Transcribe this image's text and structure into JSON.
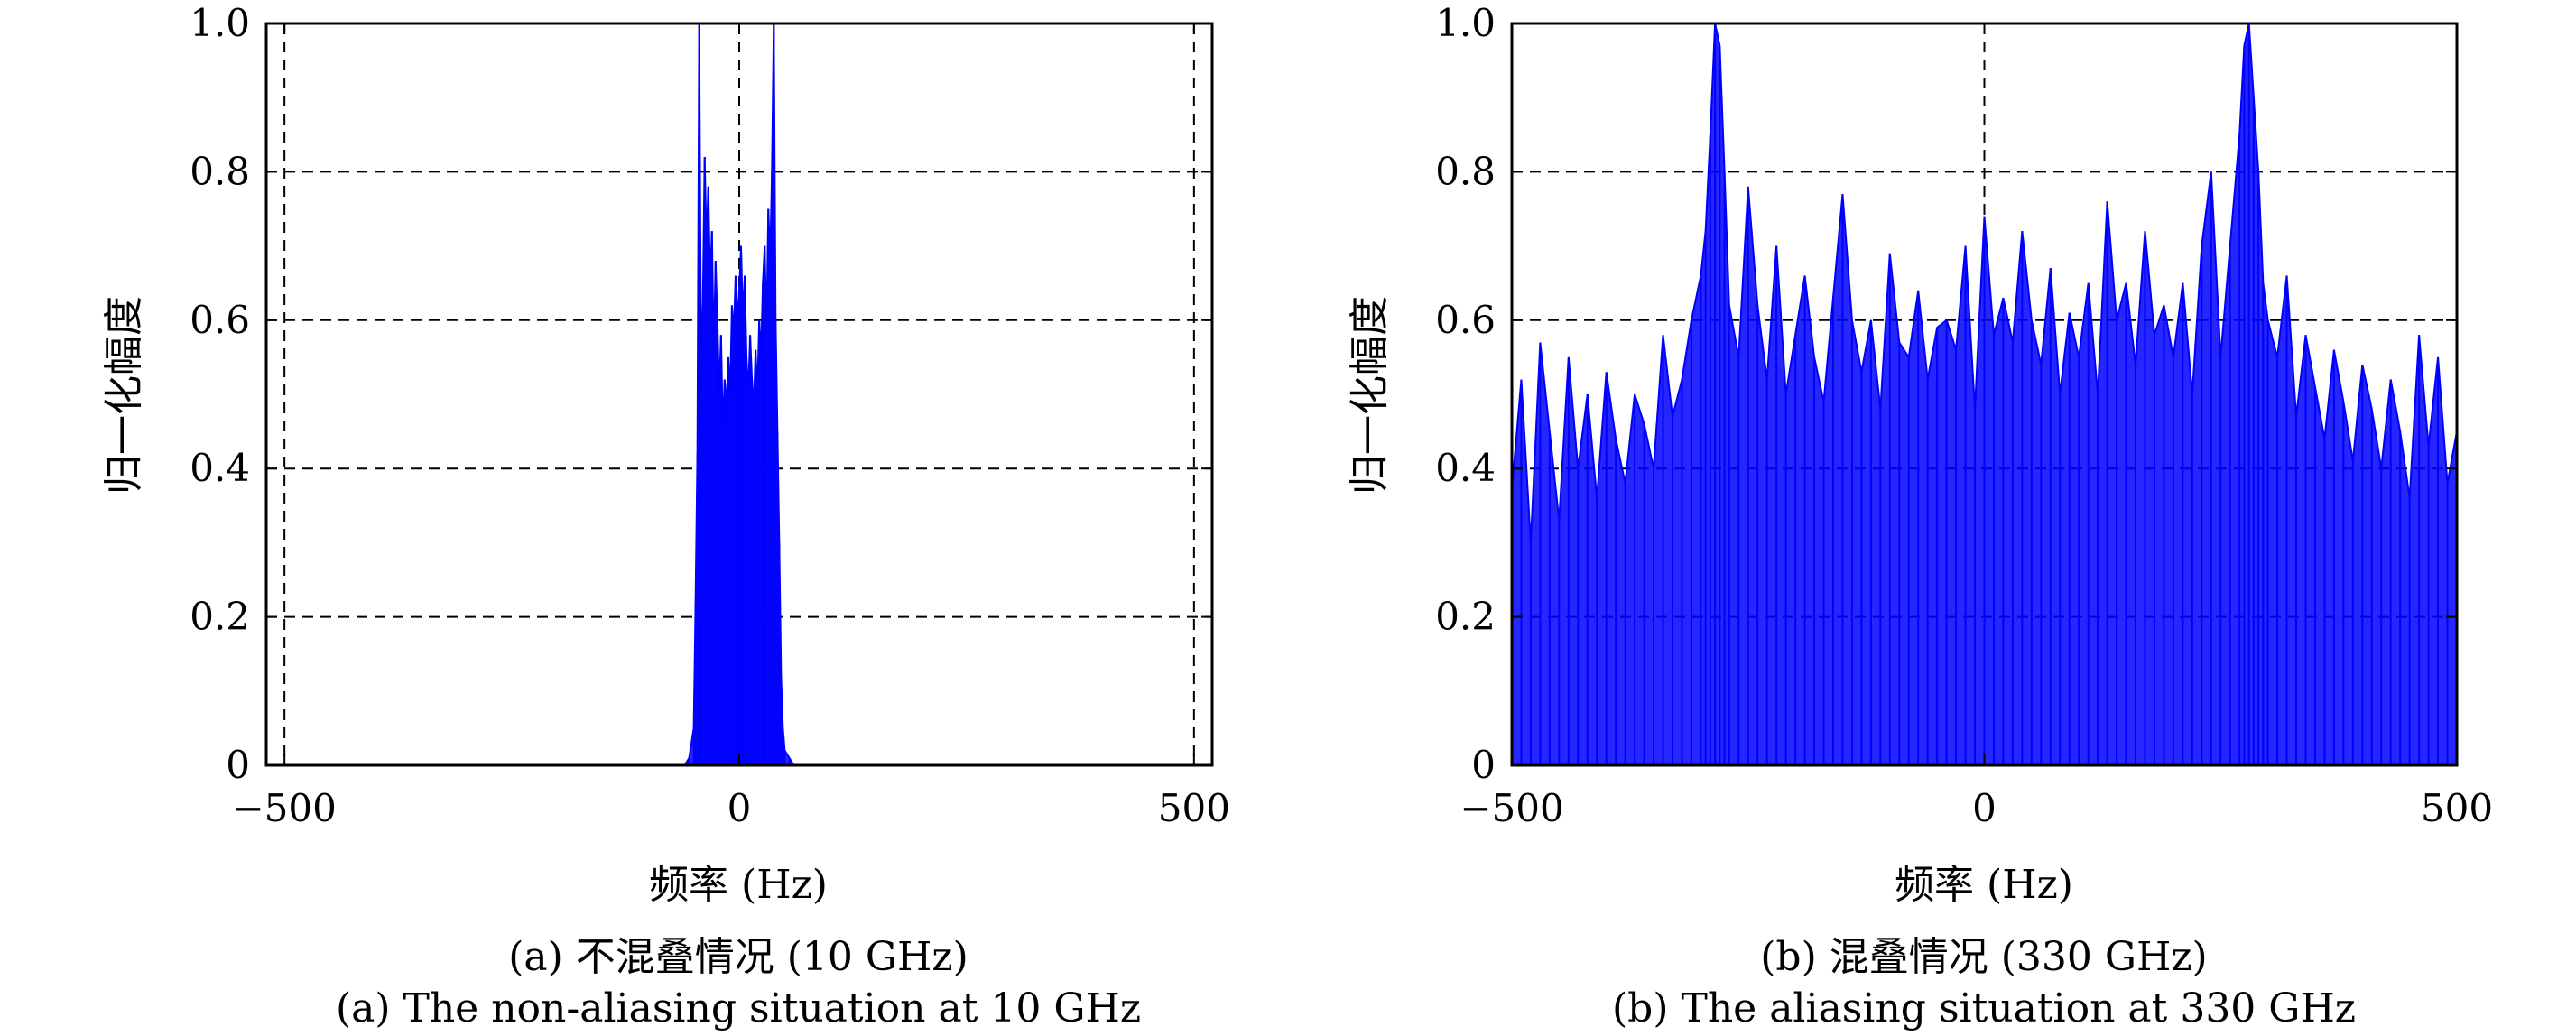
{
  "colors": {
    "signal": "#0000ff",
    "axis": "#000000",
    "grid": "#000000",
    "background": "#ffffff"
  },
  "chart_data": [
    {
      "type": "line",
      "title": "",
      "xlabel": "频率 (Hz)",
      "ylabel": "归一化幅度",
      "xlim": [
        -520,
        520
      ],
      "ylim": [
        0,
        1
      ],
      "xticks": [
        -500,
        0,
        500
      ],
      "xtick_labels": [
        "−500",
        "0",
        "500"
      ],
      "yticks": [
        0,
        0.2,
        0.4,
        0.6,
        0.8,
        1.0
      ],
      "ytick_labels": [
        "0",
        "0.2",
        "0.4",
        "0.6",
        "0.8",
        "1.0"
      ],
      "grid": "dashed",
      "caption_cn": "(a) 不混叠情况 (10 GHz)",
      "caption_en": "(a) The non-aliasing situation at 10 GHz",
      "series": [
        {
          "color": "#0000ff",
          "x": [
            -500,
            -60,
            -55,
            -50,
            -48,
            -46,
            -44,
            -42,
            -40,
            -38,
            -36,
            -34,
            -32,
            -30,
            -28,
            -26,
            -24,
            -22,
            -20,
            -18,
            -16,
            -14,
            -12,
            -10,
            -8,
            -6,
            -4,
            -2,
            0,
            2,
            4,
            6,
            8,
            10,
            12,
            14,
            16,
            18,
            20,
            22,
            24,
            26,
            28,
            30,
            32,
            34,
            36,
            38,
            40,
            42,
            44,
            46,
            48,
            50,
            55,
            60,
            500
          ],
          "y": [
            0,
            0,
            0.01,
            0.05,
            0.22,
            0.42,
            1.0,
            0.55,
            0.62,
            0.82,
            0.7,
            0.78,
            0.65,
            0.72,
            0.55,
            0.68,
            0.6,
            0.5,
            0.58,
            0.45,
            0.52,
            0.48,
            0.55,
            0.5,
            0.62,
            0.58,
            0.66,
            0.6,
            0.64,
            0.7,
            0.6,
            0.66,
            0.55,
            0.5,
            0.58,
            0.52,
            0.48,
            0.56,
            0.5,
            0.6,
            0.55,
            0.65,
            0.7,
            0.58,
            0.75,
            0.68,
            0.8,
            1.0,
            0.6,
            0.45,
            0.3,
            0.12,
            0.05,
            0.02,
            0.01,
            0,
            0
          ]
        }
      ]
    },
    {
      "type": "line",
      "title": "",
      "xlabel": "频率 (Hz)",
      "ylabel": "归一化幅度",
      "xlim": [
        -500,
        500
      ],
      "ylim": [
        0,
        1
      ],
      "xticks": [
        -500,
        0,
        500
      ],
      "xtick_labels": [
        "−500",
        "0",
        "500"
      ],
      "yticks": [
        0,
        0.2,
        0.4,
        0.6,
        0.8,
        1.0
      ],
      "ytick_labels": [
        "0",
        "0.2",
        "0.4",
        "0.6",
        "0.8",
        "1.0"
      ],
      "grid": "dashed",
      "caption_cn": "(b) 混叠情况 (330 GHz)",
      "caption_en": "(b) The aliasing situation at 330 GHz",
      "series": [
        {
          "color": "#0000ff",
          "x": [
            -500,
            -490,
            -480,
            -470,
            -460,
            -450,
            -440,
            -430,
            -420,
            -410,
            -400,
            -390,
            -380,
            -370,
            -360,
            -350,
            -340,
            -330,
            -320,
            -310,
            -300,
            -295,
            -290,
            -285,
            -280,
            -275,
            -270,
            -260,
            -250,
            -240,
            -230,
            -220,
            -210,
            -200,
            -190,
            -180,
            -170,
            -160,
            -150,
            -140,
            -130,
            -120,
            -110,
            -100,
            -90,
            -80,
            -70,
            -60,
            -50,
            -40,
            -30,
            -20,
            -10,
            0,
            10,
            20,
            30,
            40,
            50,
            60,
            70,
            80,
            90,
            100,
            110,
            120,
            130,
            140,
            150,
            160,
            170,
            180,
            190,
            200,
            210,
            220,
            230,
            240,
            250,
            260,
            270,
            275,
            280,
            285,
            290,
            295,
            300,
            310,
            320,
            330,
            340,
            350,
            360,
            370,
            380,
            390,
            400,
            410,
            420,
            430,
            440,
            450,
            460,
            470,
            480,
            490,
            500
          ],
          "y": [
            0.37,
            0.52,
            0.3,
            0.57,
            0.45,
            0.33,
            0.55,
            0.4,
            0.5,
            0.36,
            0.53,
            0.44,
            0.38,
            0.5,
            0.46,
            0.4,
            0.58,
            0.47,
            0.52,
            0.6,
            0.66,
            0.72,
            0.85,
            1.0,
            0.97,
            0.8,
            0.62,
            0.55,
            0.78,
            0.62,
            0.52,
            0.7,
            0.5,
            0.58,
            0.66,
            0.55,
            0.49,
            0.63,
            0.77,
            0.6,
            0.53,
            0.6,
            0.48,
            0.69,
            0.57,
            0.55,
            0.64,
            0.52,
            0.59,
            0.6,
            0.56,
            0.7,
            0.48,
            0.74,
            0.58,
            0.63,
            0.57,
            0.72,
            0.6,
            0.54,
            0.67,
            0.5,
            0.61,
            0.55,
            0.65,
            0.5,
            0.76,
            0.6,
            0.65,
            0.54,
            0.72,
            0.58,
            0.62,
            0.55,
            0.65,
            0.5,
            0.7,
            0.8,
            0.55,
            0.7,
            0.85,
            0.97,
            1.0,
            0.9,
            0.8,
            0.65,
            0.6,
            0.55,
            0.66,
            0.47,
            0.58,
            0.51,
            0.44,
            0.56,
            0.49,
            0.41,
            0.54,
            0.48,
            0.4,
            0.52,
            0.45,
            0.36,
            0.58,
            0.43,
            0.55,
            0.38,
            0.45
          ]
        }
      ]
    }
  ]
}
